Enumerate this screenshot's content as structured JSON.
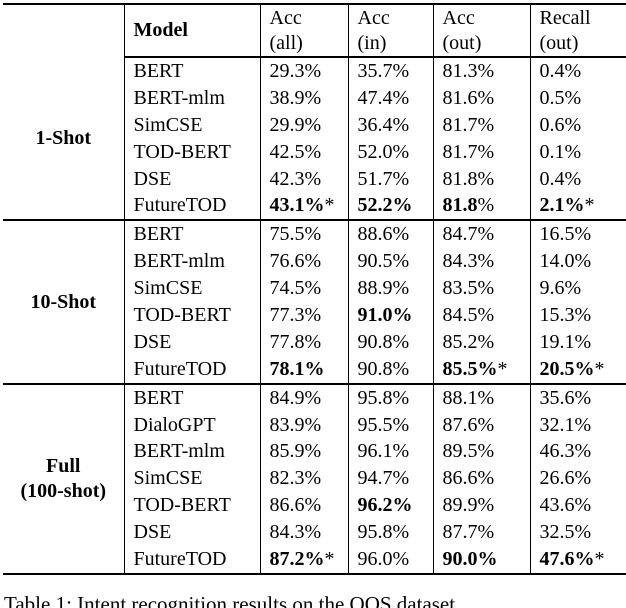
{
  "table": {
    "header": {
      "corner": "",
      "model": "Model",
      "metrics": [
        {
          "line1": "Acc",
          "line2": "(all)"
        },
        {
          "line1": "Acc",
          "line2": "(in)"
        },
        {
          "line1": "Acc",
          "line2": "(out)"
        },
        {
          "line1": "Recall",
          "line2": "(out)"
        }
      ]
    },
    "groups": [
      {
        "label_lines": [
          "1-Shot"
        ],
        "rows": [
          {
            "model": "BERT",
            "cells": [
              {
                "t": "29.3%",
                "b": false,
                "suf": ""
              },
              {
                "t": "35.7%",
                "b": false,
                "suf": ""
              },
              {
                "t": "81.3%",
                "b": false,
                "suf": ""
              },
              {
                "t": "0.4%",
                "b": false,
                "suf": ""
              }
            ]
          },
          {
            "model": "BERT-mlm",
            "cells": [
              {
                "t": "38.9%",
                "b": false,
                "suf": ""
              },
              {
                "t": "47.4%",
                "b": false,
                "suf": ""
              },
              {
                "t": "81.6%",
                "b": false,
                "suf": ""
              },
              {
                "t": "0.5%",
                "b": false,
                "suf": ""
              }
            ]
          },
          {
            "model": "SimCSE",
            "cells": [
              {
                "t": "29.9%",
                "b": false,
                "suf": ""
              },
              {
                "t": "36.4%",
                "b": false,
                "suf": ""
              },
              {
                "t": "81.7%",
                "b": false,
                "suf": ""
              },
              {
                "t": "0.6%",
                "b": false,
                "suf": ""
              }
            ]
          },
          {
            "model": "TOD-BERT",
            "cells": [
              {
                "t": "42.5%",
                "b": false,
                "suf": ""
              },
              {
                "t": "52.0%",
                "b": false,
                "suf": ""
              },
              {
                "t": "81.7%",
                "b": false,
                "suf": ""
              },
              {
                "t": "0.1%",
                "b": false,
                "suf": ""
              }
            ]
          },
          {
            "model": "DSE",
            "cells": [
              {
                "t": "42.3%",
                "b": false,
                "suf": ""
              },
              {
                "t": "51.7%",
                "b": false,
                "suf": ""
              },
              {
                "t": "81.8%",
                "b": false,
                "suf": ""
              },
              {
                "t": "0.4%",
                "b": false,
                "suf": ""
              }
            ]
          },
          {
            "model": "FutureTOD",
            "cells": [
              {
                "t": "43.1%",
                "b": true,
                "suf": "*"
              },
              {
                "t": "52.2%",
                "b": true,
                "suf": ""
              },
              {
                "t": "81.8",
                "b": true,
                "suf": "%"
              },
              {
                "t": "2.1%",
                "b": true,
                "suf": "*"
              }
            ]
          }
        ]
      },
      {
        "label_lines": [
          "10-Shot"
        ],
        "rows": [
          {
            "model": "BERT",
            "cells": [
              {
                "t": "75.5%",
                "b": false,
                "suf": ""
              },
              {
                "t": "88.6%",
                "b": false,
                "suf": ""
              },
              {
                "t": "84.7%",
                "b": false,
                "suf": ""
              },
              {
                "t": "16.5%",
                "b": false,
                "suf": ""
              }
            ]
          },
          {
            "model": "BERT-mlm",
            "cells": [
              {
                "t": "76.6%",
                "b": false,
                "suf": ""
              },
              {
                "t": "90.5%",
                "b": false,
                "suf": ""
              },
              {
                "t": "84.3%",
                "b": false,
                "suf": ""
              },
              {
                "t": "14.0%",
                "b": false,
                "suf": ""
              }
            ]
          },
          {
            "model": "SimCSE",
            "cells": [
              {
                "t": "74.5%",
                "b": false,
                "suf": ""
              },
              {
                "t": "88.9%",
                "b": false,
                "suf": ""
              },
              {
                "t": "83.5%",
                "b": false,
                "suf": ""
              },
              {
                "t": "9.6%",
                "b": false,
                "suf": ""
              }
            ]
          },
          {
            "model": "TOD-BERT",
            "cells": [
              {
                "t": "77.3%",
                "b": false,
                "suf": ""
              },
              {
                "t": "91.0%",
                "b": true,
                "suf": ""
              },
              {
                "t": "84.5%",
                "b": false,
                "suf": ""
              },
              {
                "t": "15.3%",
                "b": false,
                "suf": ""
              }
            ]
          },
          {
            "model": "DSE",
            "cells": [
              {
                "t": "77.8%",
                "b": false,
                "suf": ""
              },
              {
                "t": "90.8%",
                "b": false,
                "suf": ""
              },
              {
                "t": "85.2%",
                "b": false,
                "suf": ""
              },
              {
                "t": "19.1%",
                "b": false,
                "suf": ""
              }
            ]
          },
          {
            "model": "FutureTOD",
            "cells": [
              {
                "t": "78.1%",
                "b": true,
                "suf": ""
              },
              {
                "t": "90.8%",
                "b": false,
                "suf": ""
              },
              {
                "t": "85.5%",
                "b": true,
                "suf": "*"
              },
              {
                "t": "20.5%",
                "b": true,
                "suf": "*"
              }
            ]
          }
        ]
      },
      {
        "label_lines": [
          "Full",
          "(100-shot)"
        ],
        "rows": [
          {
            "model": "BERT",
            "cells": [
              {
                "t": "84.9%",
                "b": false,
                "suf": ""
              },
              {
                "t": "95.8%",
                "b": false,
                "suf": ""
              },
              {
                "t": "88.1%",
                "b": false,
                "suf": ""
              },
              {
                "t": "35.6%",
                "b": false,
                "suf": ""
              }
            ]
          },
          {
            "model": "DialoGPT",
            "cells": [
              {
                "t": "83.9%",
                "b": false,
                "suf": ""
              },
              {
                "t": "95.5%",
                "b": false,
                "suf": ""
              },
              {
                "t": "87.6%",
                "b": false,
                "suf": ""
              },
              {
                "t": "32.1%",
                "b": false,
                "suf": ""
              }
            ]
          },
          {
            "model": "BERT-mlm",
            "cells": [
              {
                "t": "85.9%",
                "b": false,
                "suf": ""
              },
              {
                "t": "96.1%",
                "b": false,
                "suf": ""
              },
              {
                "t": "89.5%",
                "b": false,
                "suf": ""
              },
              {
                "t": "46.3%",
                "b": false,
                "suf": ""
              }
            ]
          },
          {
            "model": "SimCSE",
            "cells": [
              {
                "t": "82.3%",
                "b": false,
                "suf": ""
              },
              {
                "t": "94.7%",
                "b": false,
                "suf": ""
              },
              {
                "t": "86.6%",
                "b": false,
                "suf": ""
              },
              {
                "t": "26.6%",
                "b": false,
                "suf": ""
              }
            ]
          },
          {
            "model": "TOD-BERT",
            "cells": [
              {
                "t": "86.6%",
                "b": false,
                "suf": ""
              },
              {
                "t": "96.2%",
                "b": true,
                "suf": ""
              },
              {
                "t": "89.9%",
                "b": false,
                "suf": ""
              },
              {
                "t": "43.6%",
                "b": false,
                "suf": ""
              }
            ]
          },
          {
            "model": "DSE",
            "cells": [
              {
                "t": "84.3%",
                "b": false,
                "suf": ""
              },
              {
                "t": "95.8%",
                "b": false,
                "suf": ""
              },
              {
                "t": "87.7%",
                "b": false,
                "suf": ""
              },
              {
                "t": "32.5%",
                "b": false,
                "suf": ""
              }
            ]
          },
          {
            "model": "FutureTOD",
            "cells": [
              {
                "t": "87.2%",
                "b": true,
                "suf": "*"
              },
              {
                "t": "96.0%",
                "b": false,
                "suf": ""
              },
              {
                "t": "90.0%",
                "b": true,
                "suf": ""
              },
              {
                "t": "47.6%",
                "b": true,
                "suf": "*"
              }
            ]
          }
        ]
      }
    ]
  },
  "caption": {
    "text": "Table 1: Intent recognition results on the OOS dataset"
  }
}
